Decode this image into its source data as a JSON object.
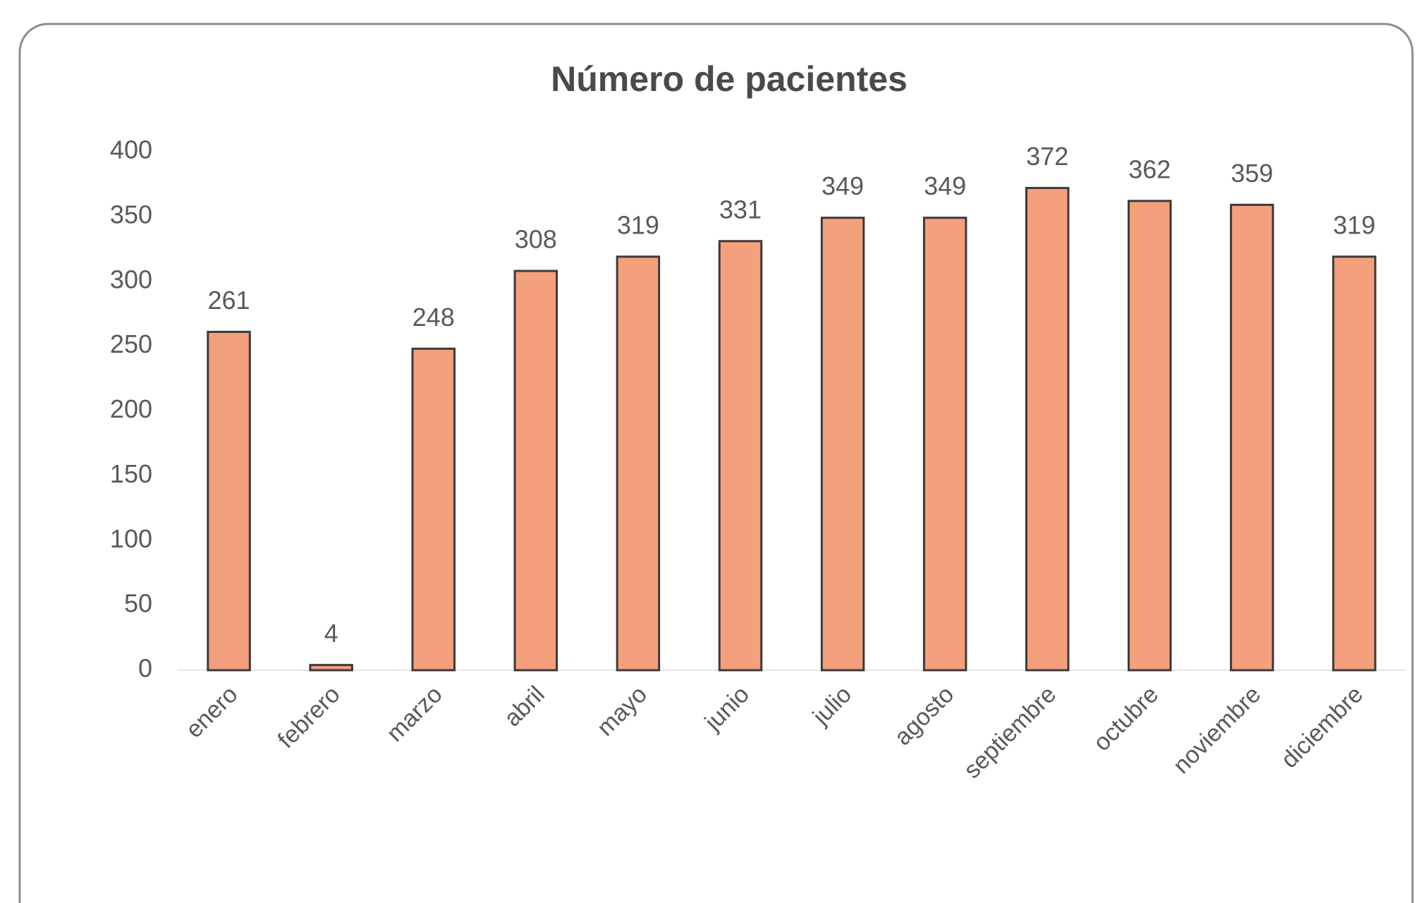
{
  "chart_data": {
    "type": "bar",
    "title": "Número de pacientes",
    "categories": [
      "enero",
      "febrero",
      "marzo",
      "abril",
      "mayo",
      "junio",
      "julio",
      "agosto",
      "septiembre",
      "octubre",
      "noviembre",
      "diciembre"
    ],
    "values": [
      261,
      4,
      248,
      308,
      319,
      331,
      349,
      349,
      372,
      362,
      359,
      319
    ],
    "color": "#f4a07c",
    "ylim": [
      0,
      400
    ],
    "yticks": [
      0,
      50,
      100,
      150,
      200,
      250,
      300,
      350,
      400
    ],
    "grid": false
  }
}
